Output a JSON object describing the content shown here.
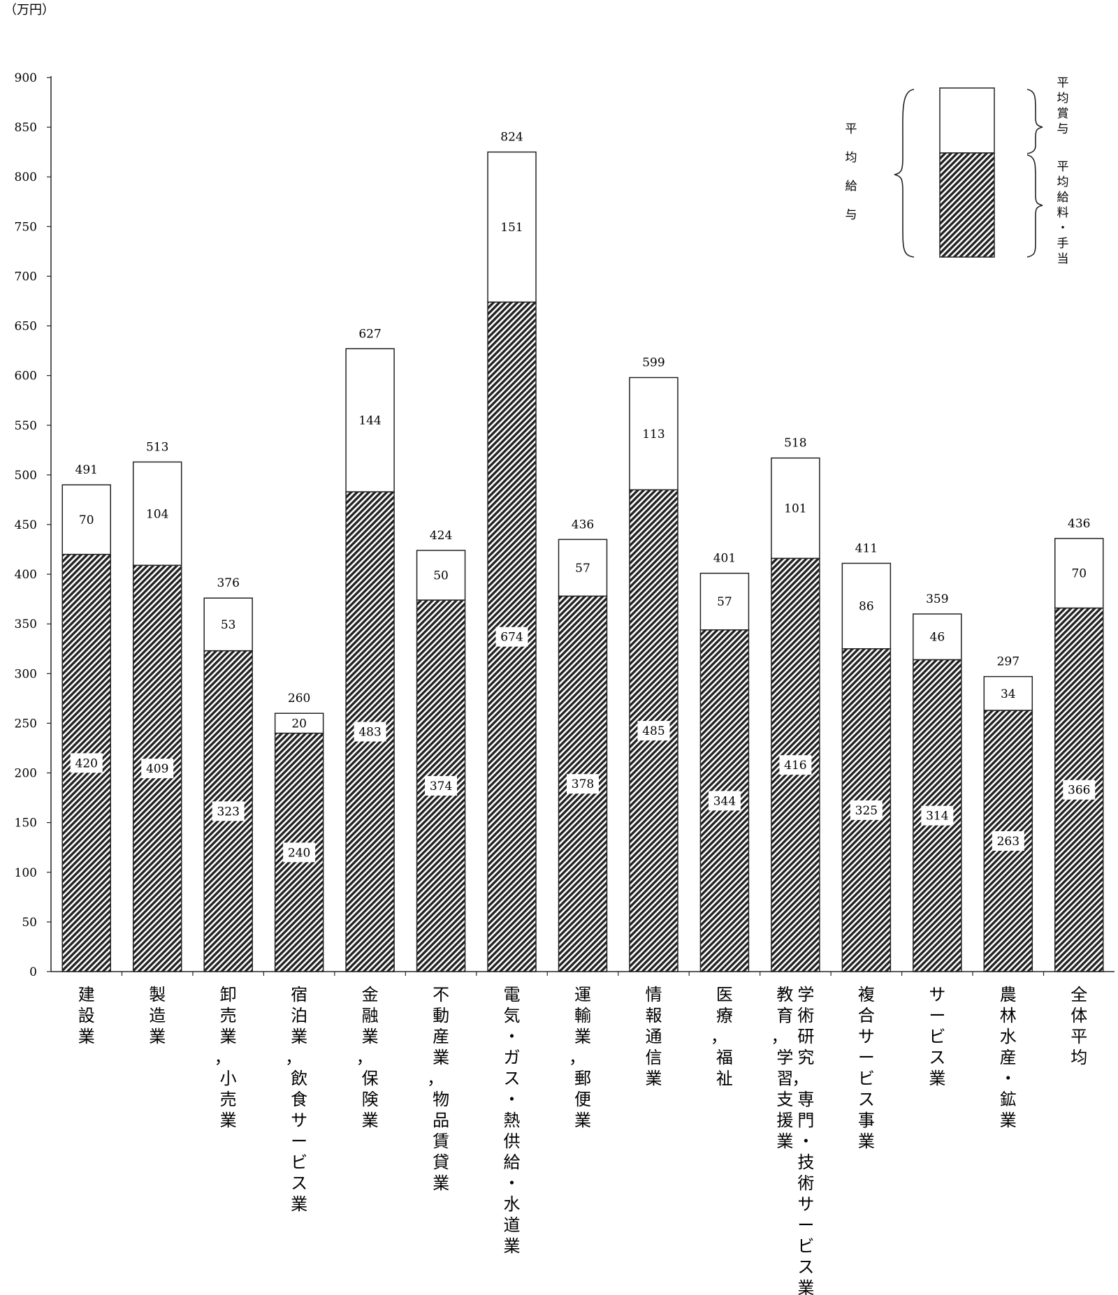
{
  "chart_data": {
    "type": "bar",
    "stacked": true,
    "unit_label": "（万円）",
    "ylim": [
      0,
      900
    ],
    "yticks": [
      0,
      50,
      100,
      150,
      200,
      250,
      300,
      350,
      400,
      450,
      500,
      550,
      600,
      650,
      700,
      750,
      800,
      850,
      900
    ],
    "categories": [
      [
        "建設業"
      ],
      [
        "製造業"
      ],
      [
        "卸売業，小売業"
      ],
      [
        "宿泊業，飲食サービス業"
      ],
      [
        "金融業，保険業"
      ],
      [
        "不動産業，物品賃貸業"
      ],
      [
        "電気・ガス・熱供給・水道業"
      ],
      [
        "運輸業，郵便業"
      ],
      [
        "情報通信業"
      ],
      [
        "医療，福祉"
      ],
      [
        "学術研究，専門・技術サービス業",
        "教育，学習支援業"
      ],
      [
        "複合サービス事業"
      ],
      [
        "サービス業"
      ],
      [
        "農林水産・鉱業"
      ],
      [
        "全体平均"
      ]
    ],
    "series": [
      {
        "name": "平均給料・手当",
        "pattern": "hatched",
        "values": [
          420,
          409,
          323,
          240,
          483,
          374,
          674,
          378,
          485,
          344,
          416,
          325,
          314,
          263,
          366
        ]
      },
      {
        "name": "平均賞与",
        "pattern": "white",
        "values": [
          70,
          104,
          53,
          20,
          144,
          50,
          151,
          57,
          113,
          57,
          101,
          86,
          46,
          34,
          70
        ]
      }
    ],
    "totals": [
      491,
      513,
      376,
      260,
      627,
      424,
      824,
      436,
      599,
      401,
      518,
      411,
      359,
      297,
      436
    ],
    "legend": {
      "position": "top-right",
      "total_label": "平均給与",
      "bonus_label": "平均賞与",
      "salary_label": "平均給料・手当"
    },
    "colors": {
      "bar_fill_light": "#ffffff",
      "hatch_dark": "#222222",
      "axis": "#222222"
    }
  }
}
